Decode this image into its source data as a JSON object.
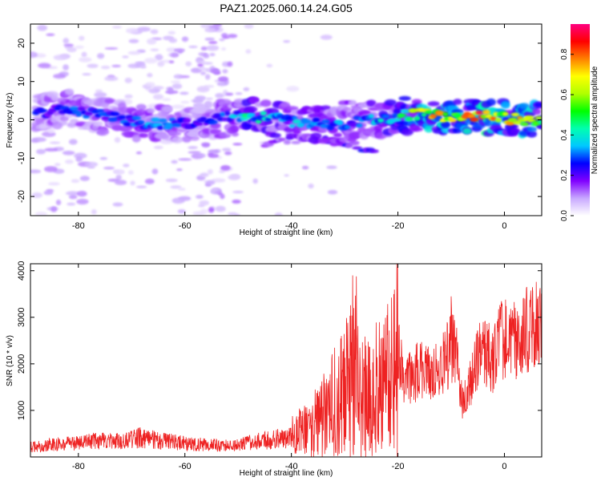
{
  "title": "PAZ1.2025.060.14.24.G05",
  "chart_data": [
    {
      "type": "heatmap",
      "xlabel": "Height of straight line (km)",
      "ylabel": "Frequency (Hz)",
      "xlim": [
        -89,
        7
      ],
      "ylim": [
        -25,
        25
      ],
      "xticks": [
        -80,
        -60,
        -40,
        -20,
        0
      ],
      "yticks": [
        -20,
        -10,
        0,
        10,
        20
      ],
      "colorbar": {
        "label": "Normalized spectral amplitude",
        "range": [
          0,
          0.95
        ],
        "ticks": [
          0.0,
          0.2,
          0.4,
          0.6,
          0.8
        ],
        "colormap": [
          "#ffffff",
          "#c8a8ff",
          "#8000ff",
          "#0000ff",
          "#00c8ff",
          "#00ffb0",
          "#00ff00",
          "#b0ff00",
          "#ffff00",
          "#ff8000",
          "#ff0000",
          "#ff0080"
        ]
      },
      "ridge": [
        {
          "x": -87,
          "y": 2.0,
          "a": 0.22
        },
        {
          "x": -82,
          "y": 3.0,
          "a": 0.28
        },
        {
          "x": -77,
          "y": 1.5,
          "a": 0.25
        },
        {
          "x": -72,
          "y": 0.0,
          "a": 0.26
        },
        {
          "x": -67,
          "y": -1.0,
          "a": 0.3
        },
        {
          "x": -62,
          "y": -1.0,
          "a": 0.27
        },
        {
          "x": -57,
          "y": -0.5,
          "a": 0.24
        },
        {
          "x": -52,
          "y": 0.5,
          "a": 0.28
        },
        {
          "x": -48,
          "y": 1.0,
          "a": 0.4
        },
        {
          "x": -44,
          "y": 0.5,
          "a": 0.36
        },
        {
          "x": -40,
          "y": -0.5,
          "a": 0.34
        },
        {
          "x": -36,
          "y": -1.0,
          "a": 0.33
        },
        {
          "x": -32,
          "y": -1.5,
          "a": 0.32
        },
        {
          "x": -28,
          "y": -0.5,
          "a": 0.27
        },
        {
          "x": -24,
          "y": 0.0,
          "a": 0.35
        },
        {
          "x": -20,
          "y": 1.0,
          "a": 0.4
        },
        {
          "x": -16,
          "y": 1.5,
          "a": 0.62
        },
        {
          "x": -12,
          "y": 1.0,
          "a": 0.7
        },
        {
          "x": -8,
          "y": 1.0,
          "a": 0.66
        },
        {
          "x": -4,
          "y": 1.0,
          "a": 0.8
        },
        {
          "x": 0,
          "y": 0.5,
          "a": 0.62
        },
        {
          "x": 4,
          "y": 0.0,
          "a": 0.72
        },
        {
          "x": 7,
          "y": 0.0,
          "a": 0.55
        }
      ],
      "branch": [
        {
          "x": -45,
          "y": -6.0,
          "a": 0.16
        },
        {
          "x": -38,
          "y": -5.0,
          "a": 0.18
        },
        {
          "x": -30,
          "y": -6.0,
          "a": 0.2
        },
        {
          "x": -24,
          "y": -8.5,
          "a": 0.22
        }
      ],
      "upper_branch": [
        {
          "x": -30,
          "y": 4.0,
          "a": 0.15
        },
        {
          "x": -26,
          "y": 3.5,
          "a": 0.14
        },
        {
          "x": -20,
          "y": 3.0,
          "a": 0.12
        }
      ]
    },
    {
      "type": "line",
      "xlabel": "Height of straight line (km)",
      "ylabel": "SNR (10 * v/v)",
      "xlim": [
        -89,
        7
      ],
      "ylim": [
        0,
        4150
      ],
      "xticks": [
        -80,
        -60,
        -40,
        -20,
        0
      ],
      "yticks": [
        1000,
        2000,
        3000,
        4000
      ],
      "series": [
        {
          "color": "#ee2222",
          "points": [
            [
              -89,
              210
            ],
            [
              -86,
              250
            ],
            [
              -83,
              280
            ],
            [
              -80,
              300
            ],
            [
              -77,
              340
            ],
            [
              -74,
              330
            ],
            [
              -71,
              360
            ],
            [
              -68,
              420
            ],
            [
              -65,
              350
            ],
            [
              -62,
              320
            ],
            [
              -59,
              280
            ],
            [
              -56,
              260
            ],
            [
              -53,
              250
            ],
            [
              -50,
              260
            ],
            [
              -47,
              330
            ],
            [
              -44,
              360
            ],
            [
              -42,
              400
            ],
            [
              -40,
              420
            ],
            [
              -38,
              550
            ],
            [
              -36,
              650
            ],
            [
              -34,
              900
            ],
            [
              -32,
              1250
            ],
            [
              -30,
              1450
            ],
            [
              -29,
              1600
            ],
            [
              -28,
              1700
            ],
            [
              -27,
              1300
            ],
            [
              -26,
              1350
            ],
            [
              -25,
              1300
            ],
            [
              -24,
              1450
            ],
            [
              -23,
              1550
            ],
            [
              -22,
              1600
            ],
            [
              -21,
              1700
            ],
            [
              -20,
              2250
            ],
            [
              -19,
              1700
            ],
            [
              -18,
              1650
            ],
            [
              -17,
              1750
            ],
            [
              -16,
              1900
            ],
            [
              -15,
              1800
            ],
            [
              -14,
              1750
            ],
            [
              -13,
              1850
            ],
            [
              -12,
              1950
            ],
            [
              -11,
              2100
            ],
            [
              -10,
              2350
            ],
            [
              -9,
              2150
            ],
            [
              -8,
              1200
            ],
            [
              -7,
              1300
            ],
            [
              -6,
              1800
            ],
            [
              -5,
              2100
            ],
            [
              -4,
              2250
            ],
            [
              -3,
              2150
            ],
            [
              -2,
              2050
            ],
            [
              -1,
              2450
            ],
            [
              0,
              2550
            ],
            [
              1,
              2400
            ],
            [
              2,
              2500
            ],
            [
              3,
              2550
            ],
            [
              4,
              2700
            ],
            [
              5,
              2800
            ],
            [
              6,
              2950
            ],
            [
              7,
              2800
            ]
          ]
        }
      ]
    }
  ]
}
